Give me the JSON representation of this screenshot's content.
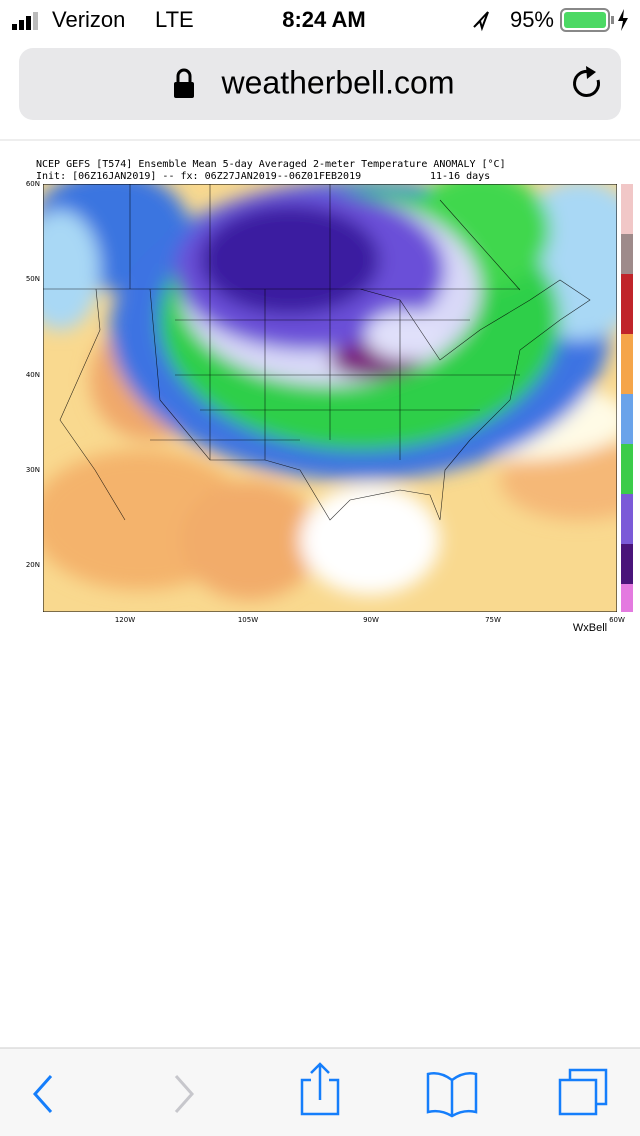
{
  "status_bar": {
    "carrier": "Verizon",
    "network": "LTE",
    "time": "8:24 AM",
    "battery": "95%"
  },
  "address_bar": {
    "url": "weatherbell.com"
  },
  "map": {
    "title": "NCEP GEFS [T574] Ensemble Mean 5-day Averaged 2-meter Temperature ANOMALY [°C]",
    "subtitle": "Init: [06Z16JAN2019] -- fx: 06Z27JAN2019--06Z01FEB2019",
    "range": "11-16 days",
    "lat_labels": [
      "60N",
      "50N",
      "40N",
      "30N",
      "20N"
    ],
    "lon_labels": [
      "120W",
      "105W",
      "90W",
      "75W",
      "60W"
    ],
    "credit": "WxBell"
  }
}
